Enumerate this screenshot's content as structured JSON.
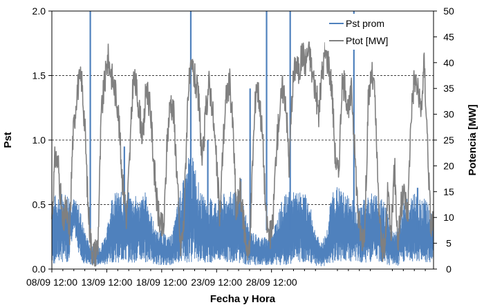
{
  "chart_data": {
    "type": "line",
    "xlabel": "Fecha y Hora",
    "ylabel": "Pst",
    "y2label": "Potencia  [MW]",
    "x_ticks": [
      "08/09 12:00",
      "13/09 12:00",
      "18/09 12:00",
      "23/09 12:00",
      "28/09 12:00"
    ],
    "x_range": [
      "08/09 12:00",
      "01/10 06:00"
    ],
    "y_ticks": [
      "0.0",
      "0.5",
      "1.0",
      "1.5",
      "2.0"
    ],
    "y_range": [
      0,
      2
    ],
    "y2_ticks": [
      "0",
      "5",
      "10",
      "15",
      "20",
      "25",
      "30",
      "35",
      "40",
      "45",
      "50"
    ],
    "y2_range": [
      0,
      50
    ],
    "grid": "horizontal dashed",
    "legend_position": "top-right",
    "series": [
      {
        "name": "Pst prom",
        "axis": "left",
        "color": "#4F81BD",
        "envelope": [
          [
            0.0,
            0.02,
            0.55
          ],
          [
            0.5,
            0.05,
            0.6
          ],
          [
            1.0,
            0.05,
            0.6
          ],
          [
            1.5,
            0.05,
            0.6
          ],
          [
            2.0,
            0.3,
            0.55
          ],
          [
            2.5,
            0.1,
            0.5
          ],
          [
            3.0,
            0.03,
            0.3
          ],
          [
            3.5,
            0.03,
            0.18
          ],
          [
            4.0,
            0.03,
            0.2
          ],
          [
            4.5,
            0.03,
            0.2
          ],
          [
            5.0,
            0.03,
            0.3
          ],
          [
            5.5,
            0.05,
            0.6
          ],
          [
            6.0,
            0.05,
            0.6
          ],
          [
            6.5,
            0.05,
            0.6
          ],
          [
            7.0,
            0.05,
            0.6
          ],
          [
            7.5,
            0.05,
            0.58
          ],
          [
            8.0,
            0.05,
            0.55
          ],
          [
            8.5,
            0.05,
            0.6
          ],
          [
            9.0,
            0.05,
            0.45
          ],
          [
            9.5,
            0.03,
            0.3
          ],
          [
            10.0,
            0.03,
            0.3
          ],
          [
            10.5,
            0.03,
            0.25
          ],
          [
            11.0,
            0.03,
            0.28
          ],
          [
            11.5,
            0.05,
            0.55
          ],
          [
            12.0,
            0.05,
            0.7
          ],
          [
            12.5,
            0.05,
            0.9
          ],
          [
            13.0,
            0.05,
            0.85
          ],
          [
            13.5,
            0.05,
            0.6
          ],
          [
            14.0,
            0.05,
            0.55
          ],
          [
            14.5,
            0.05,
            0.55
          ],
          [
            15.0,
            0.05,
            0.55
          ],
          [
            15.5,
            0.05,
            0.58
          ],
          [
            16.0,
            0.05,
            0.6
          ],
          [
            16.5,
            0.05,
            0.6
          ],
          [
            17.0,
            0.05,
            0.6
          ],
          [
            17.5,
            0.03,
            0.5
          ],
          [
            18.0,
            0.03,
            0.3
          ],
          [
            18.5,
            0.03,
            0.28
          ],
          [
            19.0,
            0.03,
            0.25
          ],
          [
            19.5,
            0.03,
            0.25
          ],
          [
            20.0,
            0.03,
            0.3
          ],
          [
            20.5,
            0.03,
            0.4
          ],
          [
            21.0,
            0.03,
            0.55
          ],
          [
            21.5,
            0.03,
            0.6
          ],
          [
            22.0,
            0.05,
            0.6
          ],
          [
            22.5,
            0.05,
            0.6
          ],
          [
            23.0,
            0.05,
            0.6
          ],
          [
            23.5,
            0.05,
            0.5
          ],
          [
            24.0,
            0.02,
            0.3
          ],
          [
            24.5,
            0.02,
            0.2
          ],
          [
            25.0,
            0.02,
            0.3
          ],
          [
            25.5,
            0.05,
            0.6
          ],
          [
            26.0,
            0.05,
            0.65
          ],
          [
            26.5,
            0.05,
            0.6
          ],
          [
            27.0,
            0.05,
            0.58
          ],
          [
            27.5,
            0.05,
            0.55
          ],
          [
            28.0,
            0.05,
            0.5
          ],
          [
            28.5,
            0.05,
            0.55
          ],
          [
            29.0,
            0.05,
            0.6
          ],
          [
            29.5,
            0.05,
            0.6
          ],
          [
            30.0,
            0.05,
            0.55
          ],
          [
            30.5,
            0.02,
            0.5
          ],
          [
            31.0,
            0.02,
            0.3
          ],
          [
            31.5,
            0.02,
            0.3
          ],
          [
            32.0,
            0.05,
            0.55
          ],
          [
            32.5,
            0.05,
            0.55
          ],
          [
            33.0,
            0.05,
            0.6
          ],
          [
            33.5,
            0.05,
            0.55
          ],
          [
            34.0,
            0.05,
            0.55
          ],
          [
            34.5,
            0.05,
            0.45
          ],
          [
            34.75,
            0.05,
            0.4
          ]
        ],
        "spikes": [
          [
            3.5,
            2.0
          ],
          [
            12.65,
            2.0
          ],
          [
            19.55,
            2.0
          ],
          [
            21.7,
            2.0
          ],
          [
            27.5,
            2.0
          ],
          [
            18.05,
            1.4
          ],
          [
            14.2,
            1.0
          ],
          [
            6.6,
            0.95
          ],
          [
            17.2,
            0.7
          ],
          [
            33.3,
            0.63
          ]
        ]
      },
      {
        "name": "Ptot [MW]",
        "axis": "right",
        "color": "#808080",
        "values": [
          [
            0.0,
            10
          ],
          [
            0.3,
            22
          ],
          [
            0.6,
            20
          ],
          [
            1.0,
            8
          ],
          [
            1.3,
            12
          ],
          [
            1.6,
            6
          ],
          [
            1.9,
            25
          ],
          [
            2.3,
            35
          ],
          [
            2.7,
            37
          ],
          [
            3.0,
            28
          ],
          [
            3.3,
            12
          ],
          [
            3.6,
            4
          ],
          [
            3.9,
            3
          ],
          [
            4.2,
            5
          ],
          [
            4.5,
            30
          ],
          [
            4.8,
            36
          ],
          [
            5.1,
            41
          ],
          [
            5.4,
            38
          ],
          [
            5.7,
            35
          ],
          [
            6.0,
            32
          ],
          [
            6.4,
            18
          ],
          [
            6.8,
            10
          ],
          [
            7.1,
            22
          ],
          [
            7.4,
            37
          ],
          [
            7.7,
            35
          ],
          [
            8.0,
            30
          ],
          [
            8.3,
            25
          ],
          [
            8.6,
            36
          ],
          [
            9.0,
            30
          ],
          [
            9.3,
            20
          ],
          [
            9.6,
            12
          ],
          [
            9.9,
            8
          ],
          [
            10.2,
            8
          ],
          [
            10.5,
            25
          ],
          [
            10.8,
            33
          ],
          [
            11.1,
            30
          ],
          [
            11.4,
            18
          ],
          [
            11.7,
            4
          ],
          [
            12.0,
            8
          ],
          [
            12.4,
            35
          ],
          [
            12.8,
            39
          ],
          [
            13.1,
            36
          ],
          [
            13.4,
            32
          ],
          [
            13.7,
            20
          ],
          [
            14.0,
            30
          ],
          [
            14.3,
            36
          ],
          [
            14.6,
            32
          ],
          [
            15.0,
            20
          ],
          [
            15.3,
            10
          ],
          [
            15.6,
            25
          ],
          [
            15.9,
            34
          ],
          [
            16.2,
            36
          ],
          [
            16.5,
            27
          ],
          [
            16.8,
            10
          ],
          [
            17.1,
            16
          ],
          [
            17.4,
            10
          ],
          [
            17.7,
            5
          ],
          [
            18.0,
            3
          ],
          [
            18.3,
            22
          ],
          [
            18.6,
            36
          ],
          [
            18.9,
            33
          ],
          [
            19.2,
            25
          ],
          [
            19.5,
            10
          ],
          [
            19.8,
            6
          ],
          [
            20.1,
            8
          ],
          [
            20.4,
            22
          ],
          [
            20.7,
            30
          ],
          [
            21.0,
            35
          ],
          [
            21.3,
            33
          ],
          [
            21.6,
            20
          ],
          [
            21.9,
            35
          ],
          [
            22.2,
            40
          ],
          [
            22.5,
            38
          ],
          [
            22.8,
            42
          ],
          [
            23.1,
            40
          ],
          [
            23.4,
            43
          ],
          [
            23.7,
            38
          ],
          [
            24.0,
            35
          ],
          [
            24.3,
            30
          ],
          [
            24.6,
            38
          ],
          [
            24.9,
            42
          ],
          [
            25.2,
            40
          ],
          [
            25.5,
            35
          ],
          [
            25.8,
            22
          ],
          [
            26.1,
            18
          ],
          [
            26.4,
            35
          ],
          [
            26.7,
            36
          ],
          [
            27.0,
            30
          ],
          [
            27.3,
            35
          ],
          [
            27.6,
            22
          ],
          [
            27.9,
            10
          ],
          [
            28.2,
            6
          ],
          [
            28.5,
            8
          ],
          [
            28.8,
            32
          ],
          [
            29.1,
            38
          ],
          [
            29.4,
            34
          ],
          [
            29.7,
            15
          ],
          [
            30.0,
            5
          ],
          [
            30.3,
            3
          ],
          [
            30.6,
            15
          ],
          [
            30.9,
            8
          ],
          [
            31.2,
            20
          ],
          [
            31.5,
            5
          ],
          [
            31.8,
            12
          ],
          [
            32.1,
            15
          ],
          [
            32.4,
            10
          ],
          [
            32.7,
            30
          ],
          [
            33.0,
            37
          ],
          [
            33.3,
            35
          ],
          [
            33.6,
            30
          ],
          [
            33.9,
            40
          ],
          [
            34.2,
            25
          ],
          [
            34.5,
            8
          ],
          [
            34.75,
            10
          ]
        ]
      }
    ]
  }
}
